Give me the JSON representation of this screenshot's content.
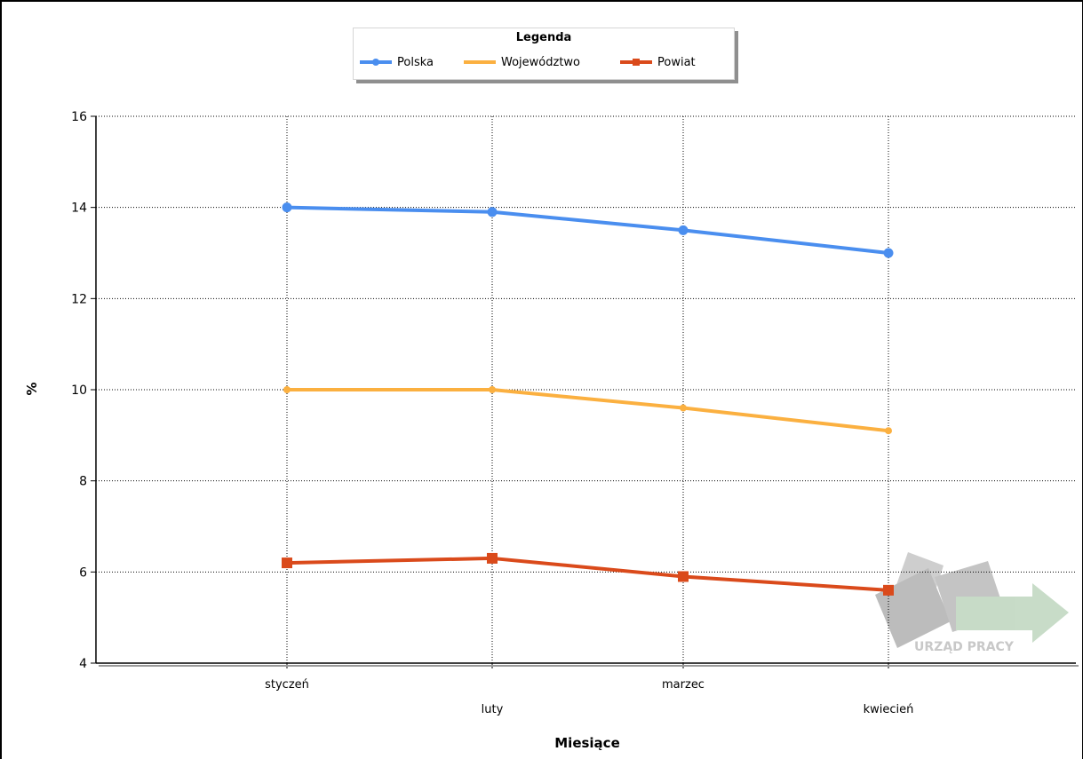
{
  "chart_data": {
    "type": "line",
    "title": "",
    "xlabel": "Miesiące",
    "ylabel": "%",
    "categories": [
      "styczeń",
      "luty",
      "marzec",
      "kwiecień"
    ],
    "ylim": [
      4,
      16
    ],
    "yticks": [
      4,
      6,
      8,
      10,
      12,
      14,
      16
    ],
    "grid": true,
    "legend": {
      "title": "Legenda",
      "position": "top-center"
    },
    "series": [
      {
        "name": "Polska",
        "values": [
          14.0,
          13.9,
          13.5,
          13.0
        ],
        "color": "#4a8eef",
        "marker": "circle"
      },
      {
        "name": "Województwo",
        "values": [
          10.0,
          10.0,
          9.6,
          9.1
        ],
        "color": "#fbb040",
        "marker": "diamond"
      },
      {
        "name": "Powiat",
        "values": [
          6.2,
          6.3,
          5.9,
          5.6
        ],
        "color": "#da4a1b",
        "marker": "square"
      }
    ]
  },
  "watermark": {
    "text": "URZĄD PRACY"
  }
}
